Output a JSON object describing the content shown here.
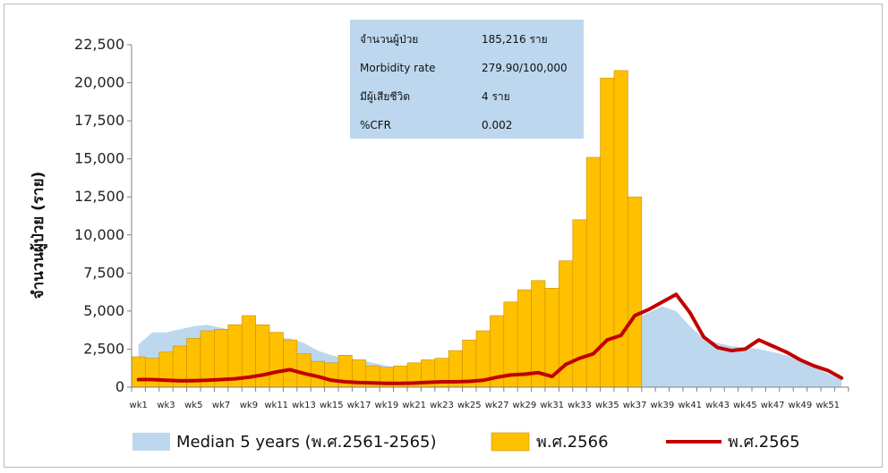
{
  "chart_data": {
    "type": "bar",
    "ylabel": "จำนวนผู้ป่วย (ราย)",
    "ylim": [
      0,
      22500
    ],
    "yticks": [
      "0",
      "2,500",
      "5,000",
      "7,500",
      "10,000",
      "12,500",
      "15,000",
      "17,500",
      "20,000",
      "22,500"
    ],
    "ytick_values": [
      0,
      2500,
      5000,
      7500,
      10000,
      12500,
      15000,
      17500,
      20000,
      22500
    ],
    "x_labels": [
      "wk1",
      "wk3",
      "wk5",
      "wk7",
      "wk9",
      "wk11",
      "wk13",
      "wk15",
      "wk17",
      "wk19",
      "wk21",
      "wk23",
      "wk25",
      "wk27",
      "wk29",
      "wk31",
      "wk33",
      "wk35",
      "wk37",
      "wk39",
      "wk41",
      "wk43",
      "wk45",
      "wk47",
      "wk49",
      "wk51"
    ],
    "weeks": 52,
    "grid": false,
    "legend_position": "bottom",
    "series": [
      {
        "name": "Median 5 years (พ.ศ.2561-2565)",
        "type": "area",
        "color": "#bdd7ee",
        "values": [
          2800,
          3600,
          3600,
          3800,
          4000,
          4100,
          3900,
          3700,
          3500,
          3400,
          3300,
          3200,
          2900,
          2400,
          2100,
          1900,
          1800,
          1600,
          1400,
          1300,
          1250,
          1300,
          1400,
          1500,
          1600,
          1700,
          1900,
          2200,
          2500,
          2800,
          3100,
          3400,
          3600,
          3800,
          4000,
          4200,
          4500,
          4900,
          5300,
          5000,
          4000,
          3200,
          2900,
          2700,
          2600,
          2500,
          2300,
          2100,
          1700,
          1300,
          900,
          500
        ]
      },
      {
        "name": "พ.ศ.2566",
        "type": "bar",
        "color": "#ffc000",
        "values": [
          2000,
          1900,
          2300,
          2700,
          3200,
          3700,
          3800,
          4100,
          4700,
          4100,
          3600,
          3100,
          2200,
          1700,
          1600,
          2100,
          1800,
          1400,
          1300,
          1400,
          1600,
          1800,
          1900,
          2400,
          3100,
          3700,
          4700,
          5600,
          6400,
          7000,
          6500,
          8300,
          11000,
          15100,
          20300,
          20800,
          12500
        ]
      },
      {
        "name": "พ.ศ.2565",
        "type": "line",
        "color": "#c00000",
        "values": [
          500,
          500,
          450,
          420,
          430,
          450,
          500,
          550,
          650,
          800,
          1000,
          1150,
          900,
          700,
          450,
          350,
          300,
          280,
          250,
          250,
          270,
          320,
          350,
          350,
          380,
          450,
          650,
          800,
          850,
          950,
          700,
          1500,
          1900,
          2200,
          3100,
          3400,
          4700,
          5100,
          5600,
          6100,
          4900,
          3300,
          2600,
          2400,
          2500,
          3100,
          2700,
          2300,
          1800,
          1400,
          1100,
          600
        ]
      }
    ],
    "info_box": {
      "rows": [
        {
          "label": "จำนวนผู้ป่วย",
          "value": "185,216 ราย"
        },
        {
          "label": "Morbidity rate",
          "value": "279.90/100,000"
        },
        {
          "label": "มีผู้เสียชีวิต",
          "value": "4 ราย"
        },
        {
          "label": "%CFR",
          "value": "0.002"
        }
      ],
      "color": "#bdd7ee"
    }
  }
}
